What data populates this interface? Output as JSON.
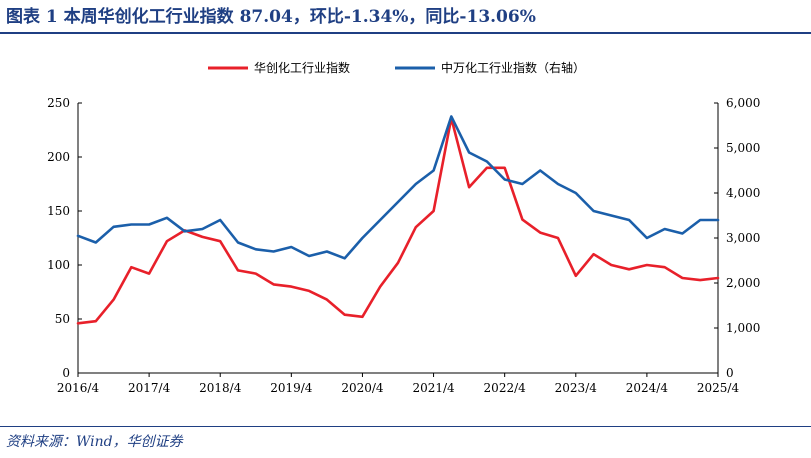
{
  "header": {
    "title": "图表 1 本周华创化工行业指数 87.04，环比-1.34%，同比-13.06%"
  },
  "footer": {
    "source": "资料来源：Wind，华创证券"
  },
  "chart_data": {
    "type": "line",
    "x": [
      "2016/4",
      "2016/7",
      "2016/10",
      "2017/1",
      "2017/4",
      "2017/7",
      "2017/10",
      "2018/1",
      "2018/4",
      "2018/7",
      "2018/10",
      "2019/1",
      "2019/4",
      "2019/7",
      "2019/10",
      "2020/1",
      "2020/4",
      "2020/7",
      "2020/10",
      "2021/1",
      "2021/4",
      "2021/7",
      "2021/10",
      "2022/1",
      "2022/4",
      "2022/7",
      "2022/10",
      "2023/1",
      "2023/4",
      "2023/7",
      "2023/10",
      "2024/1",
      "2024/4",
      "2024/7",
      "2024/10",
      "2025/1",
      "2025/4"
    ],
    "xticks": [
      "2016/4",
      "2017/4",
      "2018/4",
      "2019/4",
      "2020/4",
      "2021/4",
      "2022/4",
      "2023/4",
      "2024/4",
      "2025/4"
    ],
    "series": [
      {
        "name": "华创化工行业指数",
        "axis": "left",
        "color": "#e8202a",
        "values": [
          46,
          48,
          68,
          98,
          92,
          122,
          132,
          126,
          122,
          95,
          92,
          82,
          80,
          76,
          68,
          54,
          52,
          80,
          102,
          135,
          150,
          236,
          172,
          190,
          190,
          142,
          130,
          125,
          90,
          110,
          100,
          96,
          100,
          98,
          88,
          86,
          88
        ]
      },
      {
        "name": "中万化工行业指数（右轴）",
        "axis": "right",
        "color": "#1b5faa",
        "values": [
          3050,
          2900,
          3250,
          3300,
          3300,
          3450,
          3150,
          3200,
          3400,
          2900,
          2750,
          2700,
          2800,
          2600,
          2700,
          2550,
          3000,
          3400,
          3800,
          4200,
          4500,
          5700,
          4900,
          4700,
          4300,
          4200,
          4500,
          4200,
          4000,
          3600,
          3500,
          3400,
          3000,
          3200,
          3100,
          3400,
          3400
        ]
      }
    ],
    "y_left": {
      "range": [
        0,
        250
      ],
      "ticks": [
        "0",
        "50",
        "100",
        "150",
        "200",
        "250"
      ]
    },
    "y_right": {
      "range": [
        0,
        6000
      ],
      "ticks": [
        "0",
        "1,000",
        "2,000",
        "3,000",
        "4,000",
        "5,000",
        "6,000"
      ]
    },
    "legend": "top-center",
    "grid": false
  }
}
